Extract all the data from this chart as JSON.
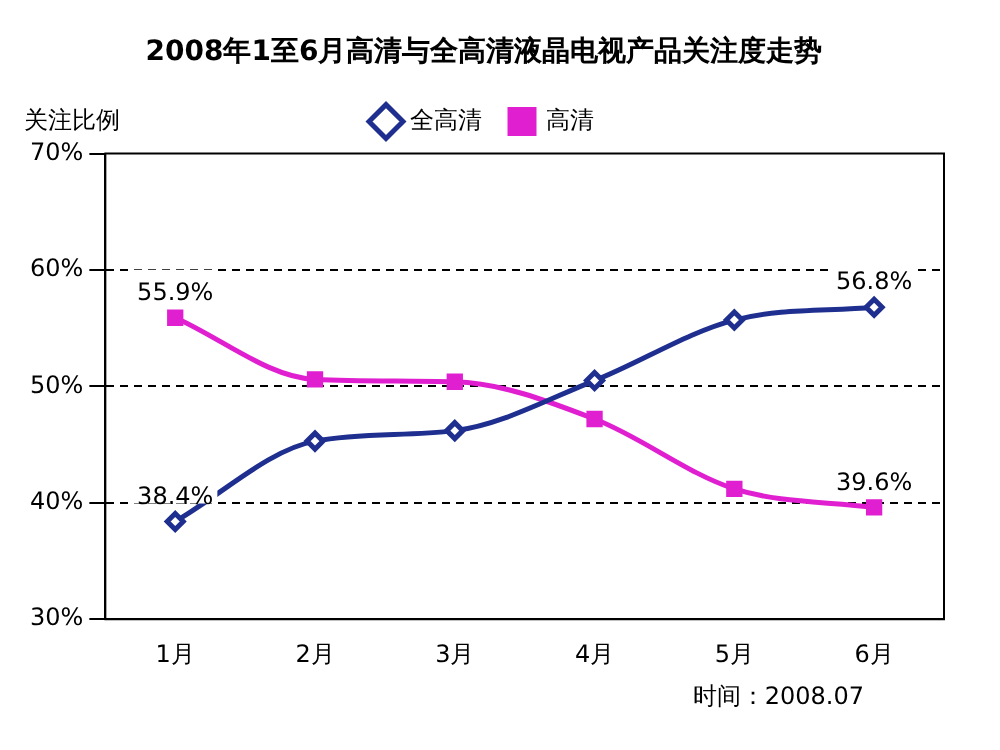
{
  "chart_data": {
    "type": "line",
    "title": "2008年1至6月高清与全高清液晶电视产品关注度走势",
    "ylabel": "关注比例",
    "categories": [
      "1月",
      "2月",
      "3月",
      "4月",
      "5月",
      "6月"
    ],
    "series": [
      {
        "name": "全高清",
        "color": "#1f2f8f",
        "marker": "diamond",
        "values": [
          38.4,
          45.3,
          46.2,
          50.5,
          55.7,
          56.8
        ],
        "value_labels": [
          "38.4%",
          null,
          null,
          null,
          null,
          "56.8%"
        ]
      },
      {
        "name": "高清",
        "color": "#e020d0",
        "marker": "square",
        "values": [
          55.9,
          50.6,
          50.4,
          47.2,
          41.2,
          39.6
        ],
        "value_labels": [
          "55.9%",
          null,
          null,
          null,
          null,
          "39.6%"
        ]
      }
    ],
    "ylim": [
      30,
      70
    ],
    "yticks": [
      {
        "value": 30,
        "label": "30%"
      },
      {
        "value": 40,
        "label": "40%"
      },
      {
        "value": 50,
        "label": "50%"
      },
      {
        "value": 60,
        "label": "60%"
      },
      {
        "value": 70,
        "label": "70%"
      }
    ],
    "grid": "y",
    "legend": "top",
    "line_style": "solid",
    "annotations": [
      "时间：2008.07"
    ]
  }
}
